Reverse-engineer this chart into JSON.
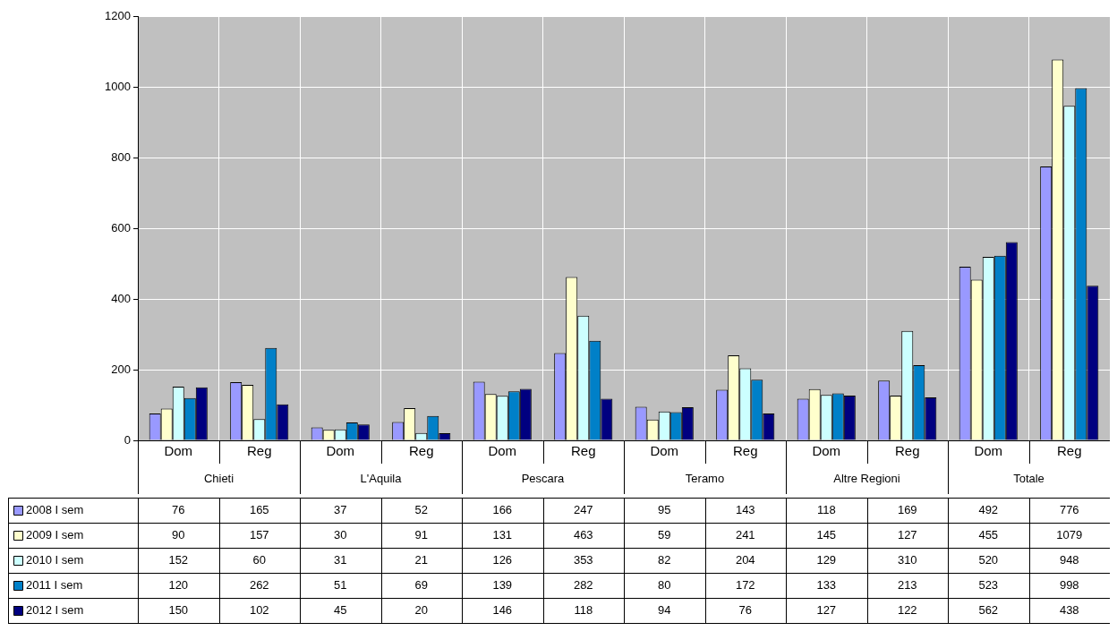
{
  "chart_data": {
    "type": "bar",
    "categories": [
      "Dom",
      "Reg",
      "Dom",
      "Reg",
      "Dom",
      "Reg",
      "Dom",
      "Reg",
      "Dom",
      "Reg",
      "Dom",
      "Reg"
    ],
    "annotations": [
      "Chieti",
      "L'Aquila",
      "Pescara",
      "Teramo",
      "Altre Regioni",
      "Totale"
    ],
    "ylim": [
      0,
      1200
    ],
    "yticks": [
      0,
      200,
      400,
      600,
      800,
      1000,
      1200
    ],
    "grid": true,
    "legend": "bottom left",
    "data_labels": true,
    "series": [
      {
        "name": "2008 I sem",
        "color": "#9999ff",
        "values": [
          76,
          165,
          37,
          52,
          166,
          247,
          95,
          143,
          118,
          169,
          492,
          776
        ]
      },
      {
        "name": "2009 I sem",
        "color": "#ffffcc",
        "values": [
          90,
          157,
          30,
          91,
          131,
          463,
          59,
          241,
          145,
          127,
          455,
          1079
        ]
      },
      {
        "name": "2010 I sem",
        "color": "#ccffff",
        "values": [
          152,
          60,
          31,
          21,
          126,
          353,
          82,
          204,
          129,
          310,
          520,
          948
        ]
      },
      {
        "name": "2011 I sem",
        "color": "#0080c8",
        "values": [
          120,
          262,
          51,
          69,
          139,
          282,
          80,
          172,
          133,
          213,
          523,
          998
        ]
      },
      {
        "name": "2012 I sem",
        "color": "#000080",
        "values": [
          150,
          102,
          45,
          20,
          146,
          118,
          94,
          76,
          127,
          122,
          562,
          438
        ]
      }
    ]
  }
}
